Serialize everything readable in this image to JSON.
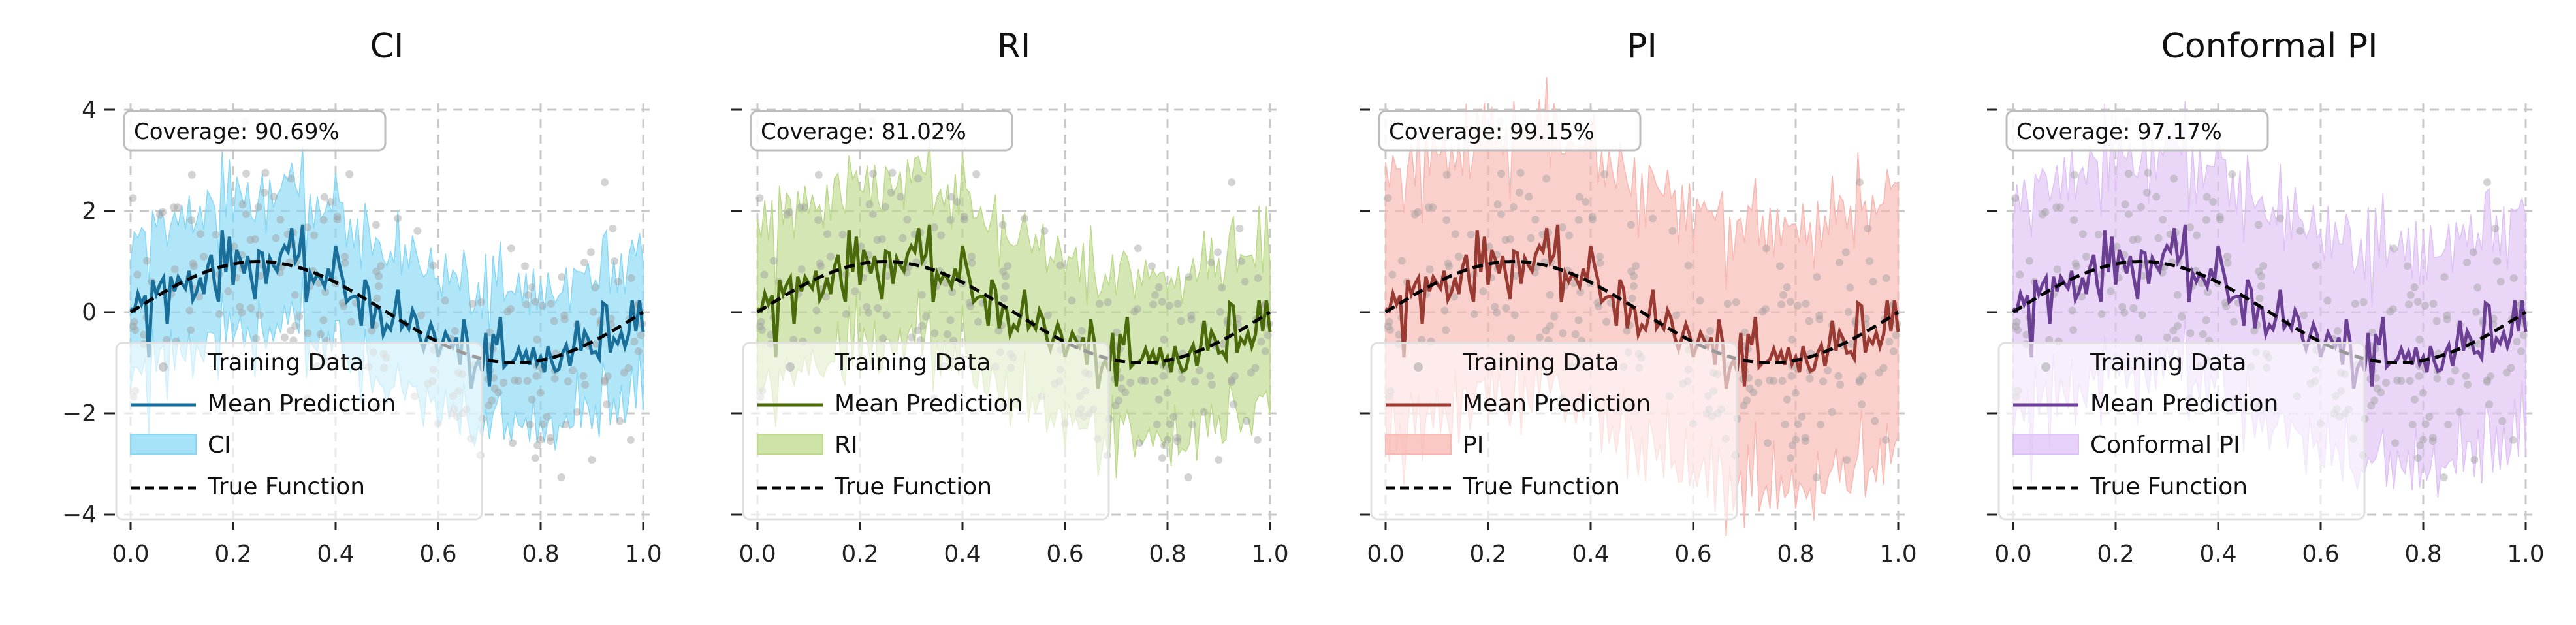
{
  "figure": {
    "colors": {
      "training": "#9e9e9e",
      "true_function": "#000000",
      "grid": "#c8c8c8"
    }
  },
  "chart_data": [
    {
      "type": "line",
      "title": "CI",
      "band_label": "CI",
      "coverage_text": "Coverage: 90.69%",
      "mean_color": "#1a6e9a",
      "band_color": "#87d8f5",
      "band_halfwidth": 1.25,
      "xlim": [
        0.0,
        1.0
      ],
      "ylim": [
        -4,
        4
      ],
      "xticks": [
        "0.0",
        "0.2",
        "0.4",
        "0.6",
        "0.8",
        "1.0"
      ],
      "yticks": [
        "4",
        "2",
        "0",
        "−2",
        "−4"
      ],
      "legend": [
        "Training Data",
        "Mean Prediction",
        "CI",
        "True Function"
      ],
      "legend_position": "lower-left",
      "grid": true
    },
    {
      "type": "line",
      "title": "RI",
      "band_label": "RI",
      "coverage_text": "Coverage: 81.02%",
      "mean_color": "#4a6a0c",
      "band_color": "#bcd98a",
      "band_halfwidth": 1.5,
      "xlim": [
        0.0,
        1.0
      ],
      "ylim": [
        -4,
        4
      ],
      "xticks": [
        "0.0",
        "0.2",
        "0.4",
        "0.6",
        "0.8",
        "1.0"
      ],
      "yticks": [
        "4",
        "2",
        "0",
        "−2",
        "−4"
      ],
      "legend": [
        "Training Data",
        "Mean Prediction",
        "RI",
        "True Function"
      ],
      "legend_position": "lower-left",
      "grid": true
    },
    {
      "type": "line",
      "title": "PI",
      "band_label": "PI",
      "coverage_text": "Coverage: 99.15%",
      "mean_color": "#9a3b33",
      "band_color": "#f8b7b0",
      "band_halfwidth": 2.4,
      "xlim": [
        0.0,
        1.0
      ],
      "ylim": [
        -4,
        4
      ],
      "xticks": [
        "0.0",
        "0.2",
        "0.4",
        "0.6",
        "0.8",
        "1.0"
      ],
      "yticks": [
        "4",
        "2",
        "0",
        "−2",
        "−4"
      ],
      "legend": [
        "Training Data",
        "Mean Prediction",
        "PI",
        "True Function"
      ],
      "legend_position": "lower-left",
      "grid": true
    },
    {
      "type": "line",
      "title": "Conformal PI",
      "band_label": "Conformal PI",
      "coverage_text": "Coverage: 97.17%",
      "mean_color": "#6b3f93",
      "band_color": "#dfc2f5",
      "band_halfwidth": 2.0,
      "xlim": [
        0.0,
        1.0
      ],
      "ylim": [
        -4,
        4
      ],
      "xticks": [
        "0.0",
        "0.2",
        "0.4",
        "0.6",
        "0.8",
        "1.0"
      ],
      "yticks": [
        "4",
        "2",
        "0",
        "−2",
        "−4"
      ],
      "legend": [
        "Training Data",
        "Mean Prediction",
        "Conformal PI",
        "True Function"
      ],
      "legend_position": "lower-left",
      "grid": true
    }
  ]
}
